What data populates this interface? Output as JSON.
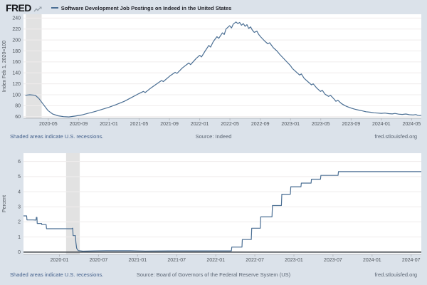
{
  "header": {
    "brand": "FRED",
    "logo_icon": "trend-line-icon",
    "legend_dash": "—"
  },
  "page": {
    "footer_note": "Shaded areas indicate U.S. recessions.",
    "site": "fred.stlouisfed.org"
  },
  "colors": {
    "page_bg": "#dbe2ea",
    "plot_bg": "#ffffff",
    "grid": "#efecec",
    "recession_band": "#e2e2e2",
    "series_line": "#4b6f94",
    "zero_line": "#42474d",
    "axis_line": "#b6bac0",
    "tick_text": "#4e545b",
    "link_text": "#44618c",
    "brand_icon": "#9aa4ad"
  },
  "chart_data": [
    {
      "type": "line",
      "title": "Software Development Job Postings on Indeed in the United States",
      "source": "Source: Indeed",
      "ylabel": "Index Feb 1, 2020=100",
      "xlim": [
        2020.06,
        2024.44
      ],
      "ylim": [
        57,
        247
      ],
      "yticks": [
        60,
        80,
        100,
        120,
        140,
        160,
        180,
        200,
        220,
        240
      ],
      "xticks": [
        [
          2020.333,
          "2020-05"
        ],
        [
          2020.667,
          "2020-09"
        ],
        [
          2021.0,
          "2021-01"
        ],
        [
          2021.333,
          "2021-05"
        ],
        [
          2021.667,
          "2021-09"
        ],
        [
          2022.0,
          "2022-01"
        ],
        [
          2022.333,
          "2022-05"
        ],
        [
          2022.667,
          "2022-09"
        ],
        [
          2023.0,
          "2023-01"
        ],
        [
          2023.333,
          "2023-05"
        ],
        [
          2023.667,
          "2023-09"
        ],
        [
          2024.0,
          "2024-01"
        ],
        [
          2024.333,
          "2024-05"
        ]
      ],
      "recession": [
        2020.085,
        2020.26
      ],
      "grid": true,
      "legend_position": "top-left",
      "points": [
        [
          2020.08,
          99
        ],
        [
          2020.13,
          100
        ],
        [
          2020.19,
          99
        ],
        [
          2020.23,
          93
        ],
        [
          2020.28,
          82
        ],
        [
          2020.33,
          71
        ],
        [
          2020.38,
          65
        ],
        [
          2020.44,
          61.5
        ],
        [
          2020.5,
          60
        ],
        [
          2020.56,
          59.5
        ],
        [
          2020.63,
          61
        ],
        [
          2020.7,
          63
        ],
        [
          2020.77,
          66
        ],
        [
          2020.85,
          69.5
        ],
        [
          2020.92,
          73
        ],
        [
          2021.0,
          77
        ],
        [
          2021.08,
          82
        ],
        [
          2021.17,
          88
        ],
        [
          2021.25,
          95
        ],
        [
          2021.33,
          102
        ],
        [
          2021.38,
          106
        ],
        [
          2021.4,
          104
        ],
        [
          2021.46,
          112
        ],
        [
          2021.52,
          119
        ],
        [
          2021.58,
          126
        ],
        [
          2021.6,
          124
        ],
        [
          2021.67,
          134
        ],
        [
          2021.73,
          141
        ],
        [
          2021.75,
          139
        ],
        [
          2021.81,
          149
        ],
        [
          2021.88,
          158
        ],
        [
          2021.9,
          155
        ],
        [
          2021.96,
          166
        ],
        [
          2022.0,
          172
        ],
        [
          2022.02,
          169
        ],
        [
          2022.06,
          180
        ],
        [
          2022.1,
          190
        ],
        [
          2022.12,
          187
        ],
        [
          2022.15,
          197
        ],
        [
          2022.19,
          206
        ],
        [
          2022.21,
          203
        ],
        [
          2022.25,
          213
        ],
        [
          2022.27,
          210
        ],
        [
          2022.29,
          220
        ],
        [
          2022.33,
          226
        ],
        [
          2022.35,
          222
        ],
        [
          2022.37,
          229
        ],
        [
          2022.4,
          233
        ],
        [
          2022.42,
          230
        ],
        [
          2022.44,
          232
        ],
        [
          2022.46,
          227
        ],
        [
          2022.48,
          230
        ],
        [
          2022.5,
          225
        ],
        [
          2022.52,
          228
        ],
        [
          2022.54,
          221
        ],
        [
          2022.56,
          224
        ],
        [
          2022.58,
          218
        ],
        [
          2022.6,
          214
        ],
        [
          2022.63,
          216
        ],
        [
          2022.65,
          210
        ],
        [
          2022.67,
          206
        ],
        [
          2022.71,
          199
        ],
        [
          2022.75,
          193
        ],
        [
          2022.77,
          195
        ],
        [
          2022.81,
          186
        ],
        [
          2022.85,
          180
        ],
        [
          2022.88,
          174
        ],
        [
          2022.92,
          167
        ],
        [
          2022.96,
          160
        ],
        [
          2023.0,
          153
        ],
        [
          2023.02,
          148
        ],
        [
          2023.06,
          142
        ],
        [
          2023.1,
          136
        ],
        [
          2023.12,
          138
        ],
        [
          2023.15,
          130
        ],
        [
          2023.19,
          124
        ],
        [
          2023.23,
          118
        ],
        [
          2023.25,
          120
        ],
        [
          2023.29,
          112
        ],
        [
          2023.33,
          106
        ],
        [
          2023.35,
          108
        ],
        [
          2023.38,
          101
        ],
        [
          2023.42,
          97
        ],
        [
          2023.44,
          99
        ],
        [
          2023.48,
          92
        ],
        [
          2023.5,
          88
        ],
        [
          2023.52,
          90
        ],
        [
          2023.56,
          84
        ],
        [
          2023.6,
          80
        ],
        [
          2023.63,
          78
        ],
        [
          2023.67,
          75.5
        ],
        [
          2023.71,
          73.5
        ],
        [
          2023.75,
          72
        ],
        [
          2023.79,
          70.5
        ],
        [
          2023.83,
          69
        ],
        [
          2023.88,
          68
        ],
        [
          2023.92,
          67
        ],
        [
          2023.96,
          66.5
        ],
        [
          2024.0,
          66
        ],
        [
          2024.04,
          66.5
        ],
        [
          2024.08,
          65.5
        ],
        [
          2024.12,
          65
        ],
        [
          2024.15,
          65.8
        ],
        [
          2024.19,
          64.5
        ],
        [
          2024.23,
          64
        ],
        [
          2024.27,
          64.8
        ],
        [
          2024.31,
          63.5
        ],
        [
          2024.35,
          63
        ],
        [
          2024.38,
          63.8
        ],
        [
          2024.4,
          62.5
        ],
        [
          2024.42,
          62
        ],
        [
          2024.44,
          62.5
        ]
      ]
    },
    {
      "type": "line",
      "title": "",
      "source": "Source: Board of Governors of the Federal Reserve System (US)",
      "ylabel": "Percent",
      "xlim": [
        2019.54,
        2024.63
      ],
      "ylim": [
        -0.15,
        6.55
      ],
      "yticks": [
        0,
        1,
        2,
        3,
        4,
        5,
        6
      ],
      "xticks": [
        [
          2020.0,
          "2020-01"
        ],
        [
          2020.5,
          "2020-07"
        ],
        [
          2021.0,
          "2021-01"
        ],
        [
          2021.5,
          "2021-07"
        ],
        [
          2022.0,
          "2022-01"
        ],
        [
          2022.5,
          "2022-07"
        ],
        [
          2023.0,
          "2023-01"
        ],
        [
          2023.5,
          "2023-07"
        ],
        [
          2024.0,
          "2024-01"
        ],
        [
          2024.5,
          "2024-07"
        ]
      ],
      "recession": [
        2020.085,
        2020.26
      ],
      "grid": true,
      "zero_line": true,
      "points": [
        [
          2019.54,
          2.4
        ],
        [
          2019.58,
          2.4
        ],
        [
          2019.585,
          2.13
        ],
        [
          2019.66,
          2.13
        ],
        [
          2019.7,
          2.12
        ],
        [
          2019.705,
          2.3
        ],
        [
          2019.712,
          2.3
        ],
        [
          2019.716,
          1.9
        ],
        [
          2019.77,
          1.9
        ],
        [
          2019.775,
          1.82
        ],
        [
          2019.83,
          1.82
        ],
        [
          2019.835,
          1.55
        ],
        [
          2020.0,
          1.55
        ],
        [
          2020.16,
          1.55
        ],
        [
          2020.165,
          1.58
        ],
        [
          2020.17,
          1.58
        ],
        [
          2020.175,
          1.09
        ],
        [
          2020.205,
          1.09
        ],
        [
          2020.21,
          0.65
        ],
        [
          2020.22,
          0.25
        ],
        [
          2020.24,
          0.1
        ],
        [
          2020.3,
          0.06
        ],
        [
          2020.45,
          0.08
        ],
        [
          2020.6,
          0.09
        ],
        [
          2020.9,
          0.09
        ],
        [
          2021.1,
          0.07
        ],
        [
          2021.4,
          0.08
        ],
        [
          2021.7,
          0.08
        ],
        [
          2022.0,
          0.08
        ],
        [
          2022.2,
          0.08
        ],
        [
          2022.205,
          0.33
        ],
        [
          2022.335,
          0.33
        ],
        [
          2022.34,
          0.83
        ],
        [
          2022.455,
          0.83
        ],
        [
          2022.46,
          1.58
        ],
        [
          2022.57,
          1.58
        ],
        [
          2022.575,
          2.33
        ],
        [
          2022.72,
          2.33
        ],
        [
          2022.725,
          3.08
        ],
        [
          2022.84,
          3.08
        ],
        [
          2022.845,
          3.83
        ],
        [
          2022.955,
          3.83
        ],
        [
          2022.96,
          4.33
        ],
        [
          2023.09,
          4.33
        ],
        [
          2023.095,
          4.57
        ],
        [
          2023.22,
          4.57
        ],
        [
          2023.225,
          4.83
        ],
        [
          2023.34,
          4.83
        ],
        [
          2023.345,
          5.08
        ],
        [
          2023.565,
          5.08
        ],
        [
          2023.57,
          5.33
        ],
        [
          2024.2,
          5.33
        ],
        [
          2024.63,
          5.33
        ]
      ]
    }
  ]
}
